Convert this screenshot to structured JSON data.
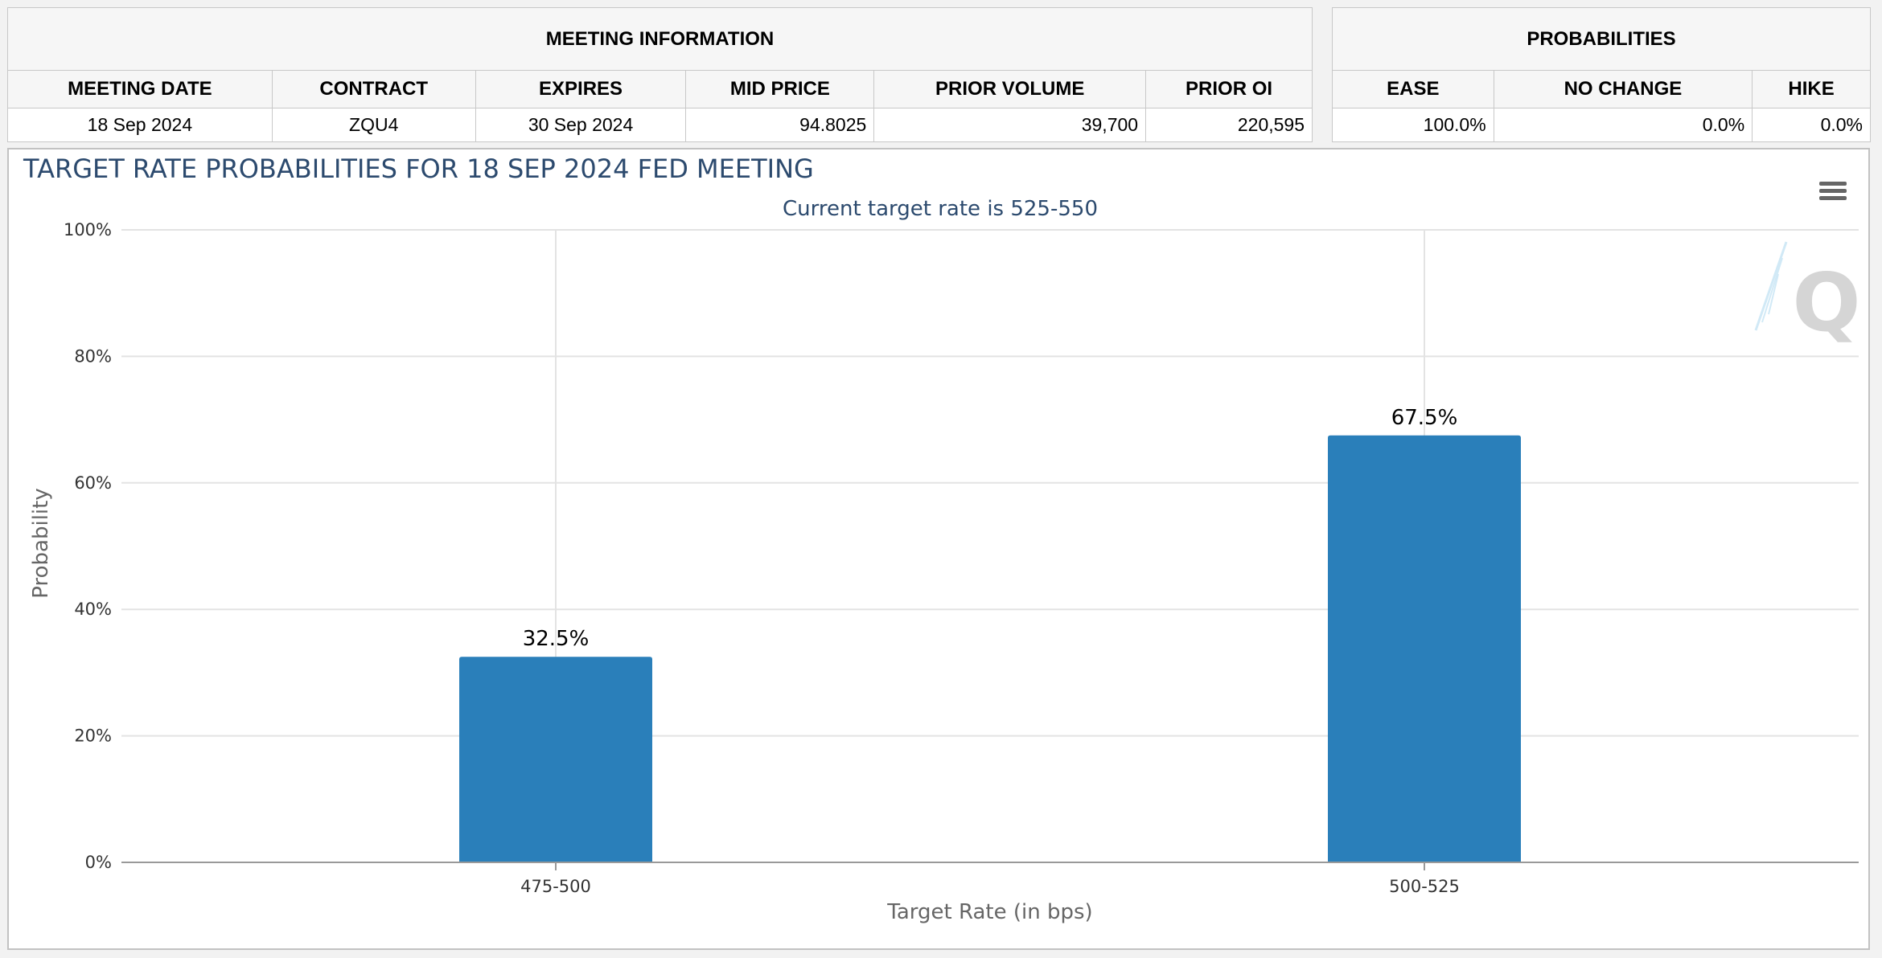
{
  "meeting_info": {
    "title": "MEETING INFORMATION",
    "headers": [
      "MEETING DATE",
      "CONTRACT",
      "EXPIRES",
      "MID PRICE",
      "PRIOR VOLUME",
      "PRIOR OI"
    ],
    "row": [
      "18 Sep 2024",
      "ZQU4",
      "30 Sep 2024",
      "94.8025",
      "39,700",
      "220,595"
    ]
  },
  "probabilities": {
    "title": "PROBABILITIES",
    "headers": [
      "EASE",
      "NO CHANGE",
      "HIKE"
    ],
    "row": [
      "100.0%",
      "0.0%",
      "0.0%"
    ]
  },
  "menu_icon": "hamburger-menu-icon",
  "watermark_icon": "q-logo-watermark",
  "colors": {
    "bar": "#2a7fba",
    "title": "#2c4a6e",
    "grid": "#e3e3e3"
  },
  "chart_data": {
    "type": "bar",
    "title": "TARGET RATE PROBABILITIES FOR 18 SEP 2024 FED MEETING",
    "subtitle": "Current target rate is 525-550",
    "xlabel": "Target Rate (in bps)",
    "ylabel": "Probability",
    "categories": [
      "475-500",
      "500-525"
    ],
    "values": [
      32.5,
      67.5
    ],
    "data_labels": [
      "32.5%",
      "67.5%"
    ],
    "ylim": [
      0,
      100
    ],
    "yticks": [
      "0%",
      "20%",
      "40%",
      "60%",
      "80%",
      "100%"
    ],
    "grid": true,
    "legend": "none"
  }
}
